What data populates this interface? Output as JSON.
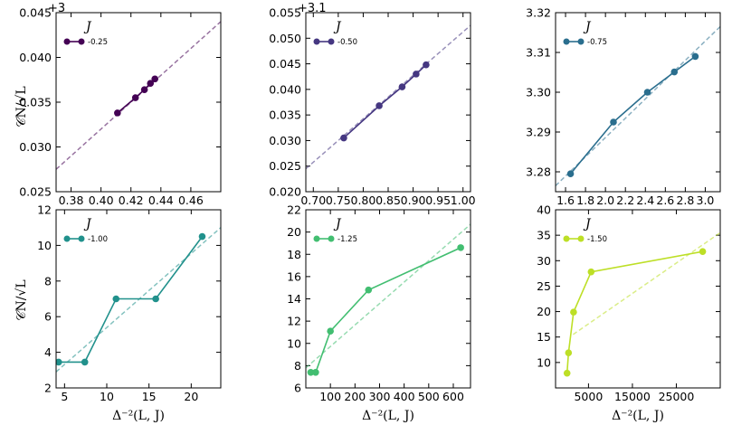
{
  "figure": {
    "xlabel": "Δ⁻²(L, J)",
    "ylabel": "𝒞N/√L",
    "legend_title": "J"
  },
  "chart_data": [
    {
      "type": "line",
      "name": "panel-j-025",
      "legend_label": "-0.25",
      "color": "#440154",
      "xlim": [
        0.37,
        0.48
      ],
      "ylim": [
        0.025,
        0.045
      ],
      "xticks": [
        0.38,
        0.4,
        0.42,
        0.44,
        0.46
      ],
      "xtick_labels": [
        "0.38",
        "0.40",
        "0.42",
        "0.44",
        "0.46"
      ],
      "yticks": [
        0.025,
        0.03,
        0.035,
        0.04,
        0.045
      ],
      "ytick_labels": [
        "0.025",
        "0.030",
        "0.035",
        "0.040",
        "0.045"
      ],
      "y_offset_label": "+3",
      "x": [
        0.411,
        0.423,
        0.429,
        0.433,
        0.436
      ],
      "y": [
        0.0338,
        0.0355,
        0.0364,
        0.0371,
        0.0376
      ],
      "fit": [
        [
          0.37,
          0.0275
        ],
        [
          0.48,
          0.044
        ]
      ]
    },
    {
      "type": "line",
      "name": "panel-j-050",
      "legend_label": "-0.50",
      "color": "#453781",
      "xlim": [
        0.685,
        1.015
      ],
      "ylim": [
        0.02,
        0.055
      ],
      "xticks": [
        0.7,
        0.75,
        0.8,
        0.85,
        0.9,
        0.95,
        1.0
      ],
      "xtick_labels": [
        "0.70",
        "0.75",
        "0.80",
        "0.85",
        "0.90",
        "0.95",
        "1.00"
      ],
      "yticks": [
        0.02,
        0.025,
        0.03,
        0.035,
        0.04,
        0.045,
        0.05,
        0.055
      ],
      "ytick_labels": [
        "0.020",
        "0.025",
        "0.030",
        "0.035",
        "0.040",
        "0.045",
        "0.050",
        "0.055"
      ],
      "y_offset_label": "+3.1",
      "x": [
        0.761,
        0.832,
        0.878,
        0.906,
        0.926
      ],
      "y": [
        0.0305,
        0.0368,
        0.0405,
        0.043,
        0.0448
      ],
      "fit": [
        [
          0.685,
          0.0245
        ],
        [
          1.015,
          0.0525
        ]
      ]
    },
    {
      "type": "line",
      "name": "panel-j-075",
      "legend_label": "-0.75",
      "color": "#2a6e8e",
      "xlim": [
        1.5,
        3.15
      ],
      "ylim": [
        3.275,
        3.32
      ],
      "xticks": [
        1.6,
        1.8,
        2.0,
        2.2,
        2.4,
        2.6,
        2.8,
        3.0
      ],
      "xtick_labels": [
        "1.6",
        "1.8",
        "2.0",
        "2.2",
        "2.4",
        "2.6",
        "2.8",
        "3.0"
      ],
      "yticks": [
        3.28,
        3.29,
        3.3,
        3.31,
        3.32
      ],
      "ytick_labels": [
        "3.28",
        "3.29",
        "3.30",
        "3.31",
        "3.32"
      ],
      "x": [
        1.65,
        2.08,
        2.42,
        2.69,
        2.9
      ],
      "y": [
        3.2795,
        3.2925,
        3.3,
        3.3051,
        3.309
      ],
      "fit": [
        [
          1.5,
          3.2765
        ],
        [
          3.15,
          3.3165
        ]
      ]
    },
    {
      "type": "line",
      "name": "panel-j-100",
      "legend_label": "-1.00",
      "color": "#21918c",
      "xlim": [
        4,
        23.5
      ],
      "ylim": [
        2,
        12
      ],
      "xticks": [
        5,
        10,
        15,
        20
      ],
      "xtick_labels": [
        "5",
        "10",
        "15",
        "20"
      ],
      "yticks": [
        2,
        4,
        6,
        8,
        10,
        12
      ],
      "ytick_labels": [
        "2",
        "4",
        "6",
        "8",
        "10",
        "12"
      ],
      "x": [
        4.3,
        7.4,
        11.1,
        15.8,
        21.3
      ],
      "y": [
        3.45,
        3.45,
        7.0,
        7.0,
        10.5
      ],
      "fit": [
        [
          4,
          2.9
        ],
        [
          23.5,
          11.0
        ]
      ]
    },
    {
      "type": "line",
      "name": "panel-j-125",
      "legend_label": "-1.25",
      "color": "#42be71",
      "xlim": [
        0,
        670
      ],
      "ylim": [
        6,
        22
      ],
      "xticks": [
        100,
        200,
        300,
        400,
        500,
        600
      ],
      "xtick_labels": [
        "100",
        "200",
        "300",
        "400",
        "500",
        "600"
      ],
      "yticks": [
        6,
        8,
        10,
        12,
        14,
        16,
        18,
        20,
        22
      ],
      "ytick_labels": [
        "6",
        "8",
        "10",
        "12",
        "14",
        "16",
        "18",
        "20",
        "22"
      ],
      "x": [
        20,
        40,
        100,
        255,
        630
      ],
      "y": [
        7.4,
        7.4,
        11.1,
        14.8,
        18.6
      ],
      "fit": [
        [
          0,
          7.8
        ],
        [
          670,
          20.7
        ]
      ]
    },
    {
      "type": "line",
      "name": "panel-j-150",
      "legend_label": "-1.50",
      "color": "#bddf26",
      "xlim": [
        -2500,
        35000
      ],
      "ylim": [
        5,
        40
      ],
      "xticks": [
        5000,
        15000,
        25000
      ],
      "xtick_labels": [
        "5000",
        "15000",
        "25000"
      ],
      "yticks": [
        10,
        15,
        20,
        25,
        30,
        35,
        40
      ],
      "ytick_labels": [
        "10",
        "15",
        "20",
        "25",
        "30",
        "35",
        "40"
      ],
      "x": [
        120,
        450,
        1600,
        5600,
        31000
      ],
      "y": [
        7.9,
        11.9,
        19.9,
        27.8,
        31.8
      ],
      "fit": [
        [
          1500,
          15.5
        ],
        [
          35000,
          35.5
        ]
      ]
    }
  ]
}
